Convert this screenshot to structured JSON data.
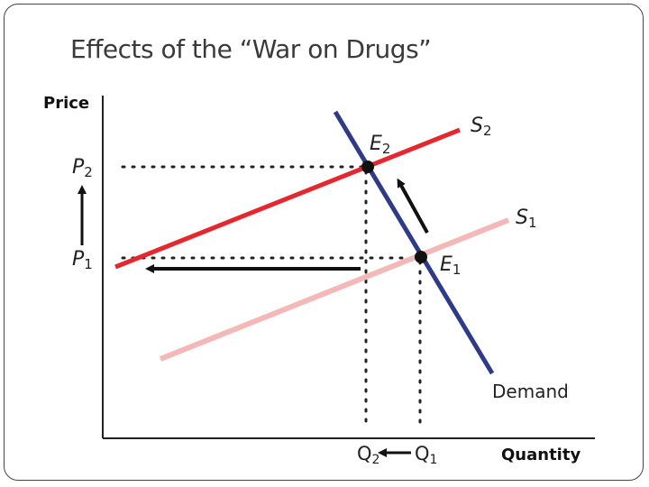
{
  "title": "Effects of the “War on Drugs”",
  "axes": {
    "y_label": "Price",
    "x_label": "Quantity"
  },
  "curves": {
    "supply_2": {
      "name": "S",
      "sub": "2",
      "color": "#e8262e"
    },
    "supply_1": {
      "name": "S",
      "sub": "1",
      "color": "#f4b8b8"
    },
    "demand": {
      "name": "Demand",
      "color": "#2e3a8c"
    }
  },
  "equilibria": {
    "e2": {
      "name": "E",
      "sub": "2"
    },
    "e1": {
      "name": "E",
      "sub": "1"
    }
  },
  "prices": {
    "p2": {
      "name": "P",
      "sub": "2"
    },
    "p1": {
      "name": "P",
      "sub": "1"
    }
  },
  "quantities": {
    "q2": {
      "name": "Q",
      "sub": "2"
    },
    "q1": {
      "name": "Q",
      "sub": "1"
    }
  },
  "colors": {
    "axis": "#222222",
    "arrow": "#111111",
    "dotted": "#222222"
  }
}
